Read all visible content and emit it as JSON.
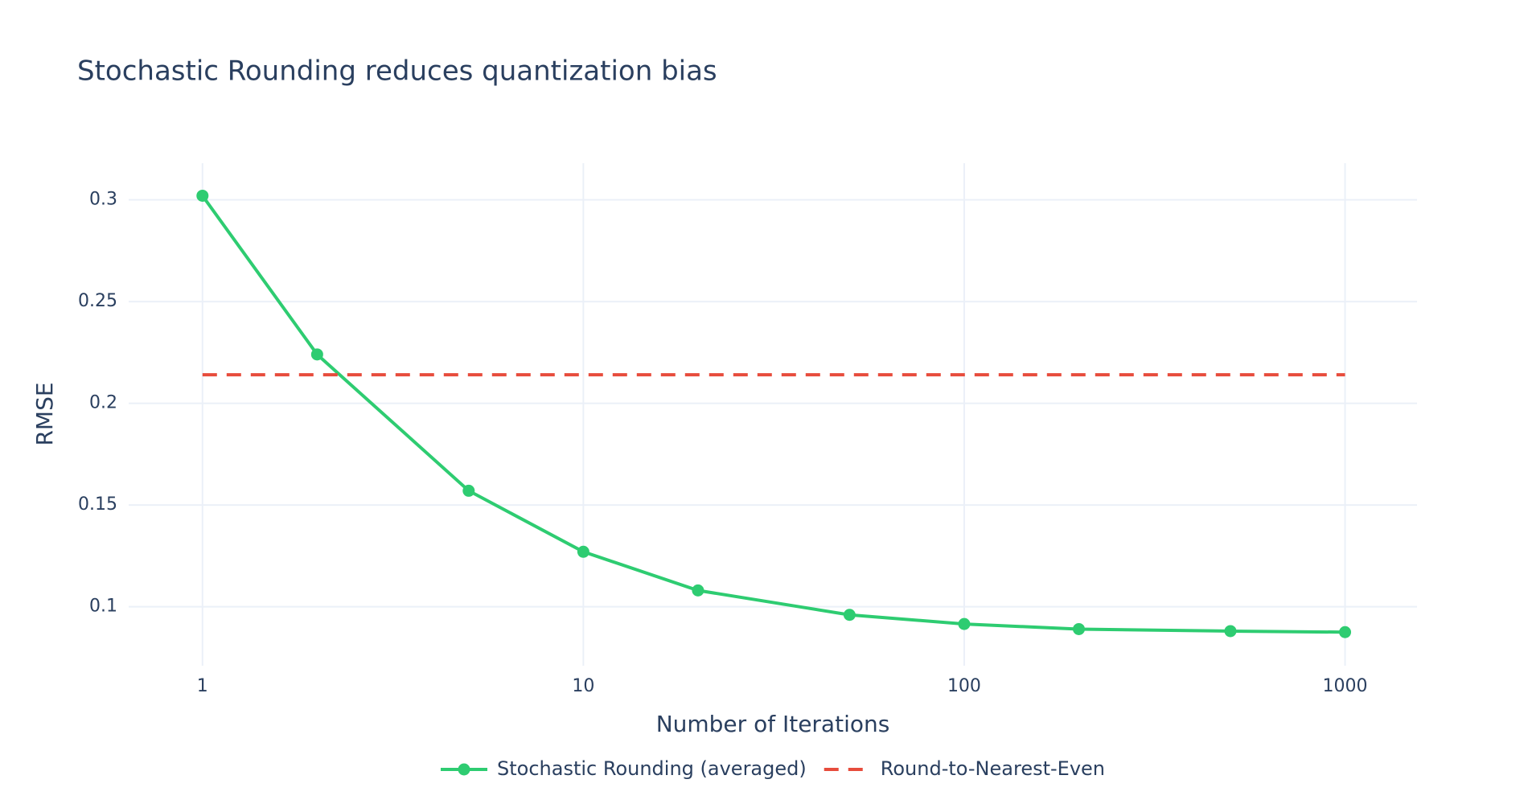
{
  "chart_data": {
    "type": "line",
    "title": "Stochastic Rounding reduces quantization bias",
    "x_label": "Number of Iterations",
    "y_label": "RMSE",
    "x": [
      1,
      2,
      5,
      10,
      20,
      50,
      100,
      200,
      500,
      1000
    ],
    "series": [
      {
        "name": "Stochastic Rounding (averaged)",
        "color": "#2ecc71",
        "mode": "lines+markers",
        "dash": "solid",
        "values": [
          0.302,
          0.224,
          0.157,
          0.127,
          0.108,
          0.096,
          0.0915,
          0.089,
          0.088,
          0.0875
        ]
      },
      {
        "name": "Round-to-Nearest-Even",
        "color": "#e74c3c",
        "mode": "lines",
        "dash": "dash",
        "values": [
          0.214,
          0.214,
          0.214,
          0.214,
          0.214,
          0.214,
          0.214,
          0.214,
          0.214,
          0.214
        ]
      }
    ],
    "xscale": "log",
    "xlim": [
      0.64,
      1545
    ],
    "ylim": [
      0.071,
      0.318
    ],
    "xticks": [
      1,
      10,
      100,
      1000
    ],
    "yticks": [
      0.1,
      0.15,
      0.2,
      0.25,
      0.3
    ],
    "grid": true,
    "legend": "bottom"
  }
}
